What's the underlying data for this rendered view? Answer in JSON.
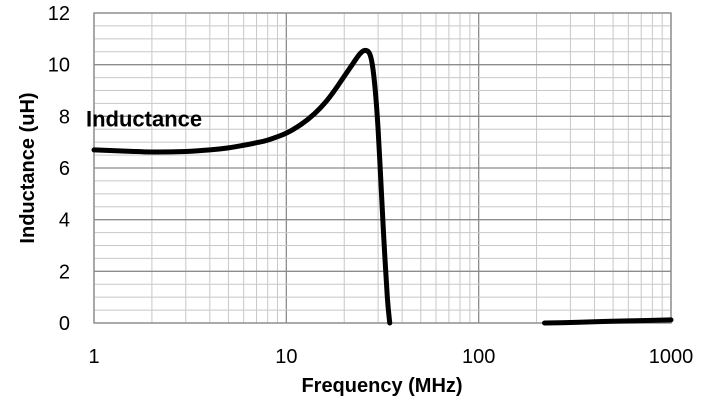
{
  "chart_data": {
    "type": "line",
    "title": "",
    "xlabel": "Frequency (MHz)",
    "ylabel": "Inductance (uH)",
    "x_scale": "log",
    "xlim": [
      1,
      1000
    ],
    "ylim": [
      0,
      12
    ],
    "grid": true,
    "x_ticks": [
      {
        "value": 1,
        "label": "1"
      },
      {
        "value": 10,
        "label": "10"
      },
      {
        "value": 100,
        "label": "100"
      },
      {
        "value": 1000,
        "label": "1000"
      }
    ],
    "y_ticks": [
      {
        "value": 0,
        "label": "0"
      },
      {
        "value": 2,
        "label": "2"
      },
      {
        "value": 4,
        "label": "4"
      },
      {
        "value": 6,
        "label": "6"
      },
      {
        "value": 8,
        "label": "8"
      },
      {
        "value": 10,
        "label": "10"
      },
      {
        "value": 12,
        "label": "12"
      }
    ],
    "series": [
      {
        "name": "Inductance",
        "color": "#000000",
        "segments": [
          [
            {
              "x": 1,
              "y": 6.7
            },
            {
              "x": 1.5,
              "y": 6.65
            },
            {
              "x": 2,
              "y": 6.62
            },
            {
              "x": 3,
              "y": 6.64
            },
            {
              "x": 4,
              "y": 6.7
            },
            {
              "x": 5,
              "y": 6.78
            },
            {
              "x": 6,
              "y": 6.88
            },
            {
              "x": 7,
              "y": 6.98
            },
            {
              "x": 8,
              "y": 7.08
            },
            {
              "x": 10,
              "y": 7.35
            },
            {
              "x": 12,
              "y": 7.7
            },
            {
              "x": 14,
              "y": 8.1
            },
            {
              "x": 16,
              "y": 8.55
            },
            {
              "x": 18,
              "y": 9.05
            },
            {
              "x": 20,
              "y": 9.55
            },
            {
              "x": 22,
              "y": 10.0
            },
            {
              "x": 24,
              "y": 10.4
            },
            {
              "x": 25.5,
              "y": 10.55
            },
            {
              "x": 27,
              "y": 10.45
            },
            {
              "x": 28,
              "y": 10.0
            },
            {
              "x": 29,
              "y": 9.0
            },
            {
              "x": 30,
              "y": 7.5
            },
            {
              "x": 31,
              "y": 5.5
            },
            {
              "x": 32,
              "y": 3.5
            },
            {
              "x": 33.5,
              "y": 1.0
            },
            {
              "x": 34.5,
              "y": 0
            }
          ],
          [
            {
              "x": 220,
              "y": 0
            },
            {
              "x": 300,
              "y": 0.02
            },
            {
              "x": 400,
              "y": 0.05
            },
            {
              "x": 600,
              "y": 0.08
            },
            {
              "x": 800,
              "y": 0.1
            },
            {
              "x": 1000,
              "y": 0.12
            }
          ]
        ]
      }
    ],
    "annotations": [
      {
        "text": "Inductance",
        "x": 1,
        "y": 7.6
      }
    ]
  }
}
